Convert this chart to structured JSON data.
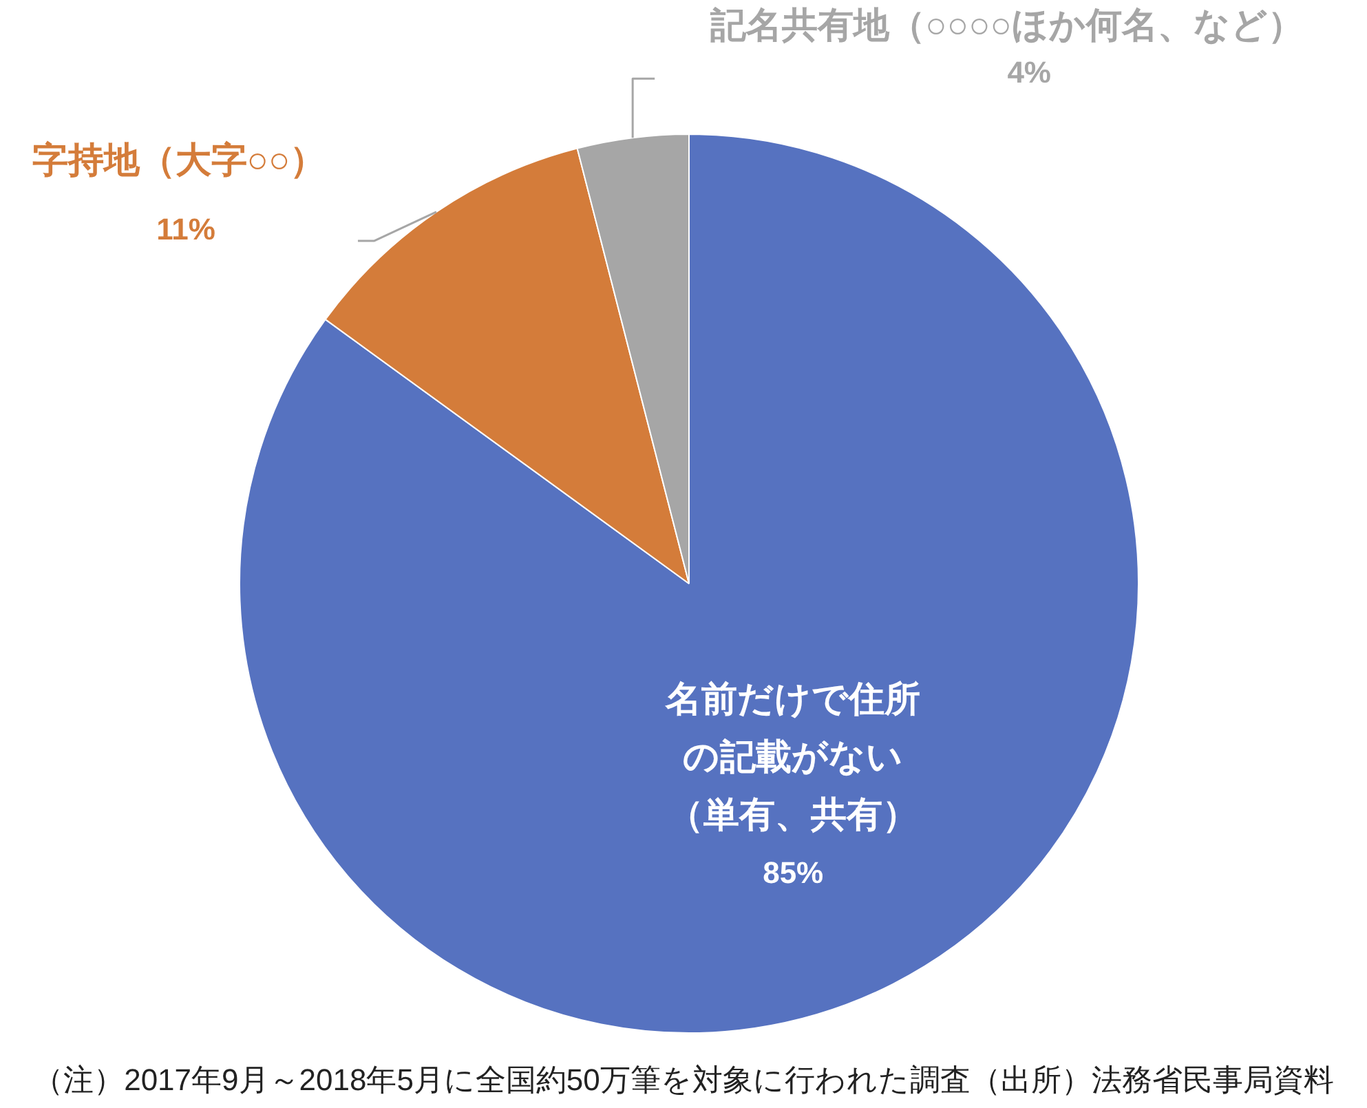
{
  "chart_data": {
    "type": "pie",
    "categories": [
      "名前だけで住所の記載がない（単有、共有）",
      "字持地（大字○○）",
      "記名共有地（○○○○ほか何名、など）"
    ],
    "values": [
      85,
      11,
      4
    ],
    "colors": [
      "#5672c0",
      "#d47c3a",
      "#a6a6a6"
    ],
    "value_labels": [
      "85%",
      "11%",
      "4%"
    ],
    "annotations": [
      "（注）2017年9月～2018年5月に全国約50万筆を対象に行われた調査（出所）法務省民事局資料"
    ]
  }
}
